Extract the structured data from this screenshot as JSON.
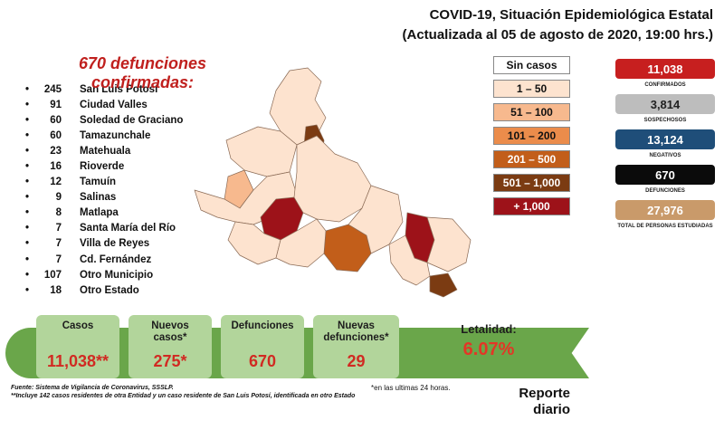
{
  "header": {
    "line1": "COVID-19, Situación Epidemiológica Estatal",
    "line2": "(Actualizada al 05 de agosto de 2020, 19:00 hrs.)"
  },
  "deaths_title": "670 defunciones confirmadas:",
  "municipalities": [
    {
      "count": "245",
      "name": "San Luis Potosí"
    },
    {
      "count": "91",
      "name": "Ciudad Valles"
    },
    {
      "count": "60",
      "name": "Soledad de Graciano"
    },
    {
      "count": "60",
      "name": "Tamazunchale"
    },
    {
      "count": "23",
      "name": "Matehuala"
    },
    {
      "count": "16",
      "name": "Rioverde"
    },
    {
      "count": "12",
      "name": "Tamuín"
    },
    {
      "count": "9",
      "name": "Salinas"
    },
    {
      "count": "8",
      "name": "Matlapa"
    },
    {
      "count": "7",
      "name": "Santa María del Río"
    },
    {
      "count": "7",
      "name": "Villa de Reyes"
    },
    {
      "count": "7",
      "name": "Cd. Fernández"
    },
    {
      "count": "107",
      "name": "Otro Municipio"
    },
    {
      "count": "18",
      "name": "Otro Estado"
    }
  ],
  "legend": [
    {
      "label": "Sin casos",
      "color": "#ffffff",
      "text_color": "#111111"
    },
    {
      "label": "1 – 50",
      "color": "#fde3cf",
      "text_color": "#111111"
    },
    {
      "label": "51 – 100",
      "color": "#f7b98e",
      "text_color": "#111111"
    },
    {
      "label": "101 – 200",
      "color": "#eb8c4b",
      "text_color": "#111111"
    },
    {
      "label": "201 – 500",
      "color": "#c25e1a",
      "text_color": "#ffffff"
    },
    {
      "label": "501 – 1,000",
      "color": "#7b3b12",
      "text_color": "#ffffff"
    },
    {
      "label": "+ 1,000",
      "color": "#9d1219",
      "text_color": "#ffffff"
    }
  ],
  "stats": [
    {
      "value": "11,038",
      "label": "CONFIRMADOS",
      "color": "#c71f1f",
      "text_color": "#ffffff"
    },
    {
      "value": "3,814",
      "label": "SOSPECHOSOS",
      "color": "#bdbdbd",
      "text_color": "#222222"
    },
    {
      "value": "13,124",
      "label": "NEGATIVOS",
      "color": "#1f4e79",
      "text_color": "#ffffff"
    },
    {
      "value": "670",
      "label": "DEFUNCIONES",
      "color": "#0b0b0b",
      "text_color": "#ffffff"
    },
    {
      "value": "27,976",
      "label": "TOTAL DE PERSONAS ESTUDIADAS",
      "color": "#c99a6a",
      "text_color": "#ffffff"
    }
  ],
  "summary": {
    "casos_label": "Casos",
    "casos_value": "11,038**",
    "nuevos_casos_label": "Nuevos casos*",
    "nuevos_casos_value": "275*",
    "defunciones_label": "Defunciones",
    "defunciones_value": "670",
    "nuevas_defunciones_label": "Nuevas defunciones*",
    "nuevas_defunciones_value": "29",
    "letalidad_label": "Letalidad:",
    "letalidad_value": "6.07%"
  },
  "footer": {
    "source": "Fuente: Sistema de Vigilancia de Coronavirus, SSSLP.",
    "note1": "*en las ultimas 24 horas.",
    "note2": "**Incluye 142 casos residentes de otra Entidad y un caso residente de San Luis Potosí, identificada en otro Estado",
    "report_line1": "Reporte",
    "report_line2": "diario"
  },
  "colors": {
    "banner": "#6aa64a",
    "card": "#b2d59b",
    "accent_red": "#d12a22"
  }
}
